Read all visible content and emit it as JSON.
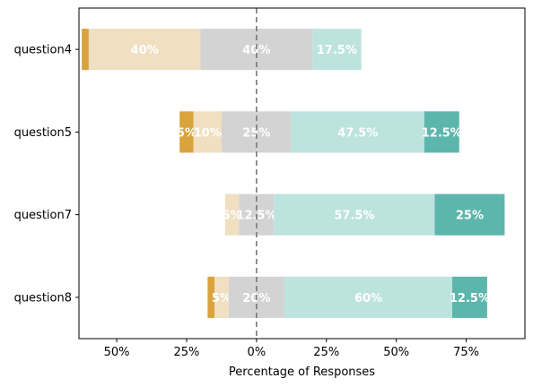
{
  "chart_data": {
    "type": "bar",
    "orientation": "horizontal",
    "stacking": "diverging",
    "xlabel": "Percentage of Responses",
    "xlim": [
      -63.5,
      96
    ],
    "x_ticks": [
      -50,
      -25,
      0,
      25,
      50,
      75
    ],
    "x_tick_labels": [
      "50%",
      "25%",
      "0%",
      "25%",
      "50%",
      "75%"
    ],
    "center_line": {
      "value": 0,
      "style": "dashed",
      "color": "#777777"
    },
    "categories": [
      "question4",
      "question5",
      "question7",
      "question8"
    ],
    "series": [
      {
        "color": "#d9a33d",
        "values": [
          2.5,
          5,
          0,
          2.5
        ]
      },
      {
        "color": "#f0dfc1",
        "values": [
          40,
          10,
          5,
          5
        ]
      },
      {
        "color": "#d3d3d3",
        "values": [
          40,
          25,
          12.5,
          20
        ]
      },
      {
        "color": "#bde3df",
        "values": [
          17.5,
          47.5,
          57.5,
          60
        ]
      },
      {
        "color": "#5db6ac",
        "values": [
          0,
          12.5,
          25,
          12.5
        ]
      }
    ],
    "segment_labels": [
      [
        "",
        "40%",
        "40%",
        "17.5%",
        ""
      ],
      [
        "5%",
        "10%",
        "25%",
        "47.5%",
        "12.5%"
      ],
      [
        "",
        "5%",
        "12.5%",
        "57.5%",
        "25%"
      ],
      [
        "",
        "5%",
        "20%",
        "60%",
        "12.5%"
      ]
    ],
    "grid": false,
    "legend": "none"
  }
}
